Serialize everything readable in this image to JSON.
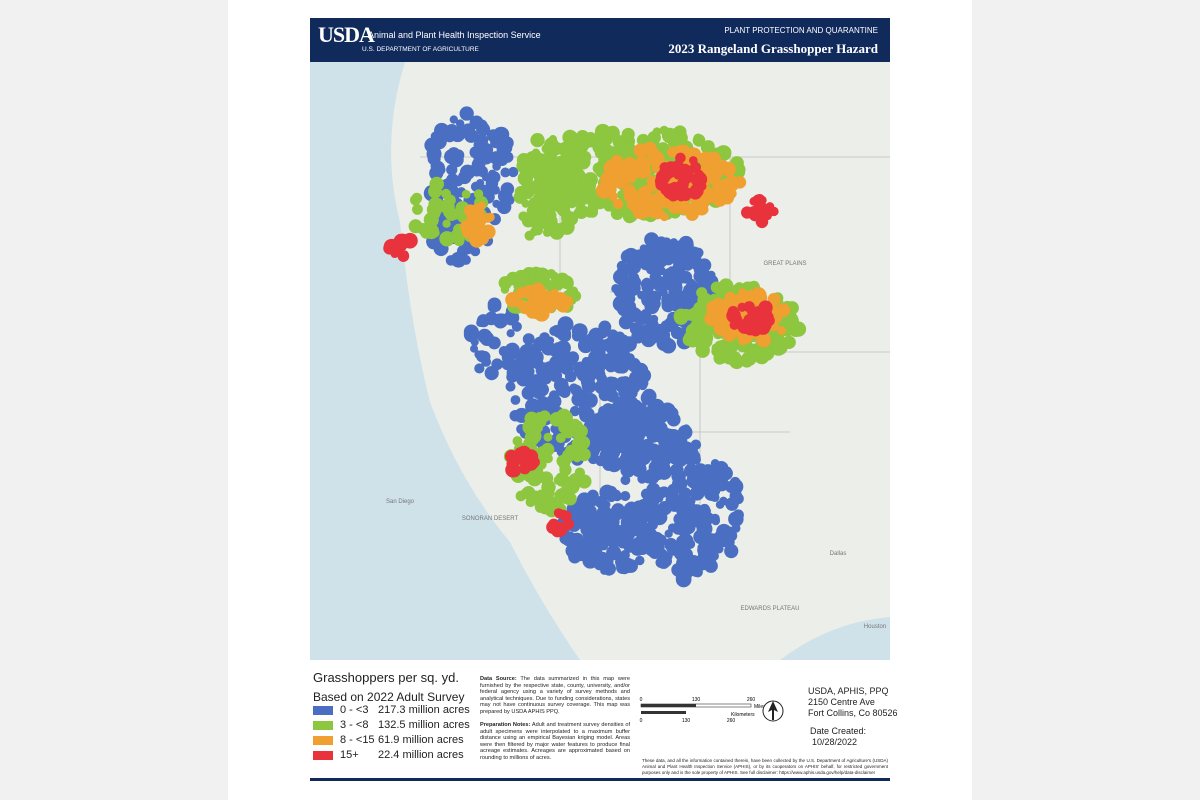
{
  "header": {
    "agency": "Animal and Plant Health Inspection Service",
    "department": "U.S. DEPARTMENT OF AGRICULTURE",
    "logo": "USDA",
    "program": "PLANT PROTECTION AND QUARANTINE",
    "title": "2023 Rangeland Grasshopper Hazard"
  },
  "map": {
    "labels": [
      "GREAT PLAINS",
      "San Diego",
      "SONORAN DESERT",
      "Dallas",
      "Houston",
      "EDWARDS PLATEAU"
    ]
  },
  "legend": {
    "title": "Grasshoppers per sq. yd.",
    "subtitle": "Based on 2022 Adult Survey",
    "items": [
      {
        "range": "0 - <3",
        "acres": "217.3 million acres",
        "color": "#4a6fc2"
      },
      {
        "range": "3 - <8",
        "acres": "132.5 million acres",
        "color": "#8dc63f"
      },
      {
        "range": "8 - <15",
        "acres": "61.9 million acres",
        "color": "#f0a030"
      },
      {
        "range": "15+",
        "acres": "22.4 million acres",
        "color": "#e8333c"
      }
    ]
  },
  "notes": {
    "source_label": "Data Source:",
    "source_text": "The data summarized in this map were furnished by the respective state, county, university, and/or federal agency using a variety of survey methods and analytical techniques. Due to funding considerations, states may not have continuous survey coverage. This map was prepared by USDA APHIS PPQ.",
    "prep_label": "Preparation Notes:",
    "prep_text": "Adult and treatment survey densities of adult specimens were interpolated to a maximum buffer distance using an empirical Bayesian kriging model. Areas were then filtered by major water features to produce final acreage estimates. Acreages are approximated based on rounding to millions of acres."
  },
  "scale": {
    "miles": [
      "0",
      "130",
      "260"
    ],
    "miles_label": "Miles",
    "km": [
      "0",
      "130",
      "260"
    ],
    "km_label": "Kilometers"
  },
  "address": [
    "USDA, APHIS, PPQ",
    "2150 Centre Ave",
    "Fort Collins, Co 80526"
  ],
  "date": {
    "label": "Date Created:",
    "value": "10/28/2022"
  },
  "disclaimer": "These data, and all the information contained therein, have been collected by the U.S. Department of Agriculture's (USDA) Animal and Plant Health Inspection Service (APHIS), or by its cooperators on APHIS' behalf, for restricted government purposes only and is the sole property of APHIS. See full disclaimer: https://www.aphis.usda.gov/help/data-disclaimer"
}
